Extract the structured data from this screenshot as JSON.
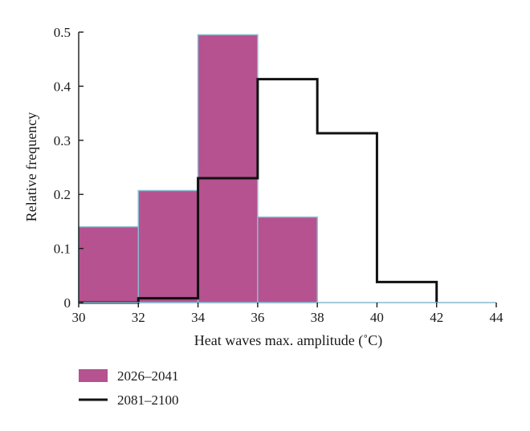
{
  "chart_data": {
    "type": "bar",
    "xlabel": "Heat waves max. amplitude (˚C)",
    "ylabel": "Relative frequency",
    "xlim": [
      30,
      44
    ],
    "ylim": [
      0,
      0.5
    ],
    "xticks": [
      "30",
      "32",
      "34",
      "36",
      "38",
      "40",
      "42",
      "44"
    ],
    "yticks": [
      "0",
      "0.1",
      "0.2",
      "0.3",
      "0.4",
      "0.5"
    ],
    "grid": false,
    "legend_position": "bottom-left",
    "bin_edges": [
      30,
      32,
      34,
      36,
      38,
      40,
      42,
      44
    ],
    "series": [
      {
        "name": "2026–2041",
        "style": "filled-bars",
        "color": "#b5528f",
        "edge_color": "#8ab8cf",
        "values": [
          0.14,
          0.207,
          0.495,
          0.158,
          0,
          0,
          0
        ]
      },
      {
        "name": "2081–2100",
        "style": "step-outline",
        "color": "#111111",
        "values": [
          0,
          0.008,
          0.23,
          0.413,
          0.313,
          0.038,
          0
        ]
      }
    ]
  }
}
